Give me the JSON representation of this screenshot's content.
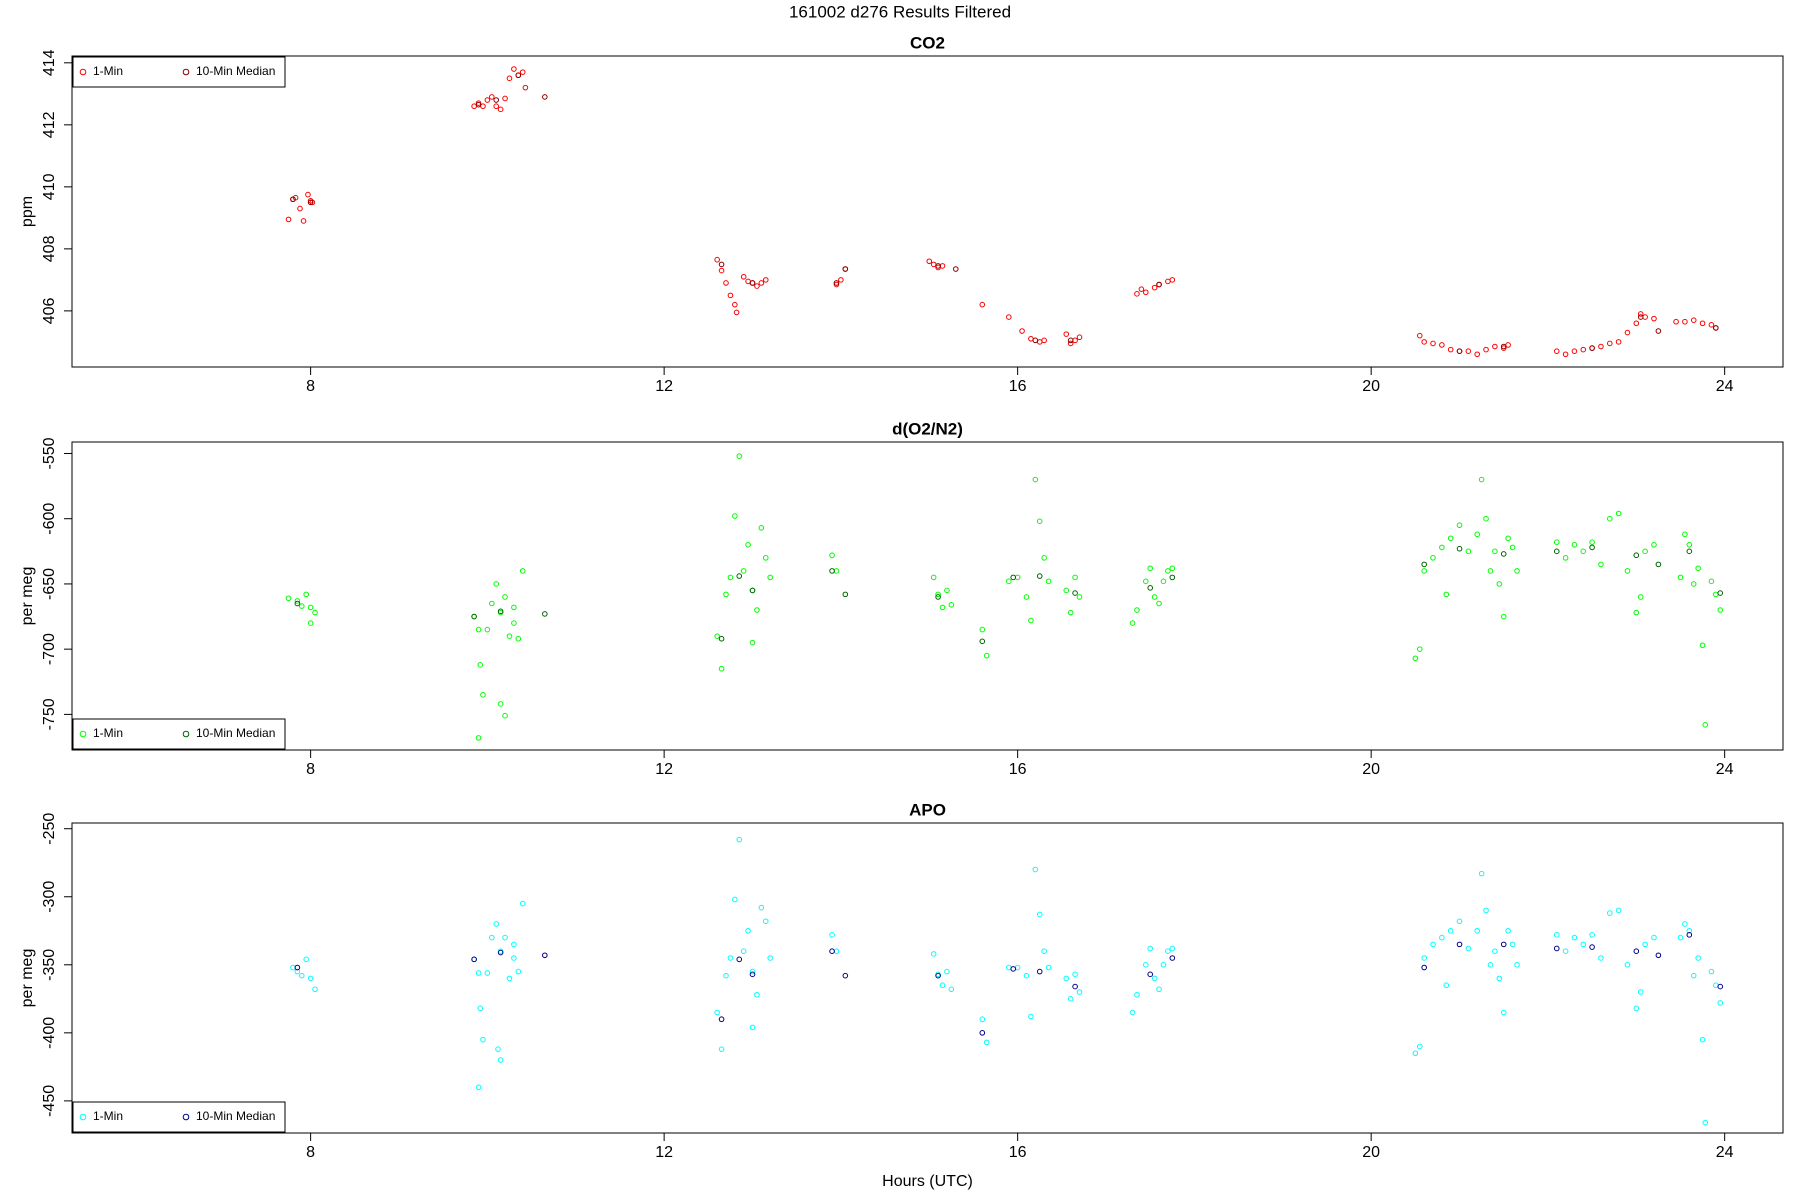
{
  "title": "161002   d276   Results Filtered",
  "chart_data": [
    {
      "type": "scatter",
      "title": "CO2",
      "y_label": "ppm",
      "legend": "topleft",
      "xlim": [
        5.3,
        24.66
      ],
      "xticks": [
        8,
        12,
        16,
        20,
        24
      ],
      "ylim": [
        404.19,
        414.22
      ],
      "yticks": [
        406,
        408,
        410,
        412,
        414
      ],
      "series": [
        {
          "name": "1-Min",
          "color": "#ff0000",
          "x": [
            7.75,
            7.8,
            7.83,
            7.88,
            7.92,
            7.97,
            8.0,
            8.02,
            9.85,
            9.9,
            9.95,
            10.0,
            10.05,
            10.1,
            10.15,
            10.2,
            10.25,
            10.3,
            10.35,
            10.4,
            10.43,
            12.6,
            12.65,
            12.7,
            12.75,
            12.8,
            12.82,
            12.9,
            12.95,
            13.0,
            13.05,
            13.1,
            13.15,
            13.95,
            14.0,
            14.05,
            15.0,
            15.05,
            15.1,
            15.15,
            15.6,
            15.9,
            16.05,
            16.15,
            16.25,
            16.3,
            16.55,
            16.6,
            16.65,
            16.7,
            17.35,
            17.4,
            17.45,
            17.55,
            17.6,
            17.7,
            17.75,
            20.55,
            20.6,
            20.7,
            20.8,
            20.9,
            21.0,
            21.1,
            21.2,
            21.3,
            21.4,
            21.5,
            21.55,
            22.1,
            22.2,
            22.3,
            22.4,
            22.5,
            22.6,
            22.7,
            22.8,
            22.9,
            23.0,
            23.05,
            23.1,
            23.2,
            23.45,
            23.55,
            23.65,
            23.75,
            23.85,
            23.9
          ],
          "values": [
            408.95,
            409.6,
            409.65,
            409.3,
            408.9,
            409.75,
            409.55,
            409.5,
            412.6,
            412.7,
            412.6,
            412.8,
            412.9,
            412.6,
            412.5,
            412.85,
            413.5,
            413.8,
            413.6,
            413.7,
            413.2,
            407.65,
            407.3,
            406.9,
            406.5,
            406.2,
            405.95,
            407.1,
            406.95,
            406.9,
            406.8,
            406.9,
            407.0,
            406.85,
            407.0,
            407.35,
            407.6,
            407.5,
            407.4,
            407.45,
            406.2,
            405.8,
            405.35,
            405.1,
            405.0,
            405.05,
            405.25,
            404.95,
            405.05,
            405.15,
            406.55,
            406.7,
            406.6,
            406.75,
            406.85,
            406.95,
            407.0,
            405.2,
            405.0,
            404.95,
            404.9,
            404.75,
            404.7,
            404.7,
            404.6,
            404.75,
            404.85,
            404.8,
            404.9,
            404.7,
            404.6,
            404.7,
            404.75,
            404.8,
            404.85,
            404.95,
            405.0,
            405.3,
            405.6,
            405.9,
            405.8,
            405.75,
            405.65,
            405.65,
            405.7,
            405.6,
            405.55,
            405.45
          ]
        },
        {
          "name": "10-Min Median",
          "color": "#8b0000",
          "x": [
            7.8,
            8.0,
            9.9,
            10.1,
            10.35,
            10.65,
            12.65,
            13.0,
            13.95,
            14.05,
            15.1,
            15.3,
            16.2,
            16.6,
            17.6,
            21.0,
            21.5,
            22.5,
            23.05,
            23.25,
            23.9
          ],
          "values": [
            409.6,
            409.5,
            412.65,
            412.8,
            413.6,
            412.9,
            407.5,
            406.9,
            406.9,
            407.35,
            407.45,
            407.35,
            405.05,
            405.05,
            406.85,
            404.7,
            404.85,
            404.8,
            405.8,
            405.35,
            405.45
          ]
        }
      ]
    },
    {
      "type": "scatter",
      "title": "d(O2/N2)",
      "y_label": "per meg",
      "legend": "bottomleft",
      "xlim": [
        5.3,
        24.66
      ],
      "xticks": [
        8,
        12,
        16,
        20,
        24
      ],
      "ylim": [
        -777.3,
        -541.2
      ],
      "yticks": [
        -550,
        -600,
        -650,
        -700,
        -750
      ],
      "series": [
        {
          "name": "1-Min",
          "color": "#00ff00",
          "x": [
            7.75,
            7.85,
            7.9,
            7.95,
            8.0,
            8.05,
            8.0,
            9.85,
            9.9,
            9.92,
            9.95,
            10.0,
            10.05,
            10.1,
            10.15,
            10.2,
            10.15,
            10.2,
            9.9,
            10.25,
            10.3,
            10.35,
            10.4,
            10.3,
            12.6,
            12.65,
            12.7,
            12.75,
            12.8,
            12.85,
            12.9,
            12.95,
            13.0,
            13.05,
            13.0,
            13.1,
            13.15,
            13.2,
            13.9,
            13.95,
            15.05,
            15.1,
            15.15,
            15.2,
            15.25,
            15.6,
            15.65,
            15.9,
            16.0,
            16.1,
            16.15,
            16.2,
            16.25,
            16.3,
            16.35,
            16.55,
            16.6,
            16.65,
            16.7,
            17.3,
            17.35,
            17.45,
            17.5,
            17.55,
            17.6,
            17.65,
            17.7,
            17.75,
            20.5,
            20.55,
            20.6,
            20.7,
            20.8,
            20.85,
            20.9,
            21.0,
            21.1,
            21.2,
            21.25,
            21.3,
            21.35,
            21.4,
            21.45,
            21.5,
            21.55,
            21.6,
            21.65,
            22.1,
            22.2,
            22.3,
            22.4,
            22.5,
            22.6,
            22.7,
            22.8,
            22.9,
            23.0,
            23.05,
            23.1,
            23.2,
            23.5,
            23.55,
            23.6,
            23.65,
            23.7,
            23.75,
            23.78,
            23.85,
            23.9,
            23.95
          ],
          "values": [
            -661,
            -663,
            -667,
            -658,
            -668,
            -672,
            -680,
            -675,
            -685,
            -712,
            -735,
            -685,
            -665,
            -650,
            -672,
            -660,
            -742,
            -751,
            -768,
            -690,
            -680,
            -692,
            -640,
            -668,
            -690,
            -715,
            -658,
            -645,
            -598,
            -552,
            -640,
            -620,
            -655,
            -670,
            -695,
            -607,
            -630,
            -645,
            -628,
            -640,
            -645,
            -658,
            -668,
            -655,
            -666,
            -685,
            -705,
            -648,
            -645,
            -660,
            -678,
            -570,
            -602,
            -630,
            -648,
            -655,
            -672,
            -645,
            -660,
            -680,
            -670,
            -648,
            -638,
            -660,
            -665,
            -648,
            -640,
            -638,
            -707,
            -700,
            -640,
            -630,
            -622,
            -658,
            -615,
            -605,
            -625,
            -612,
            -570,
            -600,
            -640,
            -625,
            -650,
            -675,
            -615,
            -622,
            -640,
            -618,
            -630,
            -620,
            -625,
            -618,
            -635,
            -600,
            -596,
            -640,
            -672,
            -660,
            -625,
            -620,
            -645,
            -612,
            -620,
            -650,
            -638,
            -697,
            -758,
            -648,
            -658,
            -670
          ]
        },
        {
          "name": "10-Min Median",
          "color": "#006400",
          "x": [
            7.85,
            9.85,
            10.15,
            10.65,
            12.65,
            12.85,
            13.0,
            13.9,
            14.05,
            15.1,
            15.6,
            15.95,
            16.25,
            16.65,
            17.5,
            17.75,
            20.6,
            21.0,
            21.5,
            22.1,
            22.5,
            23.0,
            23.25,
            23.6,
            23.95
          ],
          "values": [
            -665,
            -675,
            -671,
            -673,
            -692,
            -644,
            -655,
            -640,
            -658,
            -660,
            -694,
            -645,
            -644,
            -657,
            -653,
            -645,
            -635,
            -623,
            -627,
            -625,
            -622,
            -628,
            -635,
            -625,
            -657
          ]
        }
      ]
    },
    {
      "type": "scatter",
      "title": "APO",
      "y_label": "per meg",
      "x_label": "Hours (UTC)",
      "legend": "bottomleft",
      "xlim": [
        5.3,
        24.66
      ],
      "xticks": [
        8,
        12,
        16,
        20,
        24
      ],
      "ylim": [
        -473.6,
        -245.8
      ],
      "yticks": [
        -250,
        -300,
        -350,
        -400,
        -450
      ],
      "series": [
        {
          "name": "1-Min",
          "color": "#00ffff",
          "x": [
            7.8,
            7.85,
            7.9,
            7.95,
            8.0,
            8.05,
            9.85,
            9.9,
            9.92,
            9.95,
            10.0,
            10.05,
            10.1,
            10.15,
            10.2,
            10.12,
            10.15,
            9.9,
            10.25,
            10.3,
            10.35,
            10.4,
            10.3,
            12.6,
            12.65,
            12.7,
            12.75,
            12.8,
            12.85,
            12.9,
            12.95,
            13.0,
            13.05,
            13.0,
            13.1,
            13.15,
            13.2,
            13.9,
            13.95,
            15.05,
            15.1,
            15.15,
            15.2,
            15.25,
            15.6,
            15.65,
            15.9,
            16.0,
            16.1,
            16.15,
            16.2,
            16.25,
            16.3,
            16.35,
            16.55,
            16.6,
            16.65,
            16.7,
            17.3,
            17.35,
            17.45,
            17.5,
            17.55,
            17.6,
            17.65,
            17.7,
            17.75,
            20.5,
            20.55,
            20.6,
            20.7,
            20.8,
            20.85,
            20.9,
            21.0,
            21.1,
            21.2,
            21.25,
            21.3,
            21.35,
            21.4,
            21.45,
            21.5,
            21.55,
            21.6,
            21.65,
            22.1,
            22.2,
            22.3,
            22.4,
            22.5,
            22.6,
            22.7,
            22.8,
            22.9,
            23.0,
            23.05,
            23.1,
            23.2,
            23.5,
            23.55,
            23.6,
            23.65,
            23.7,
            23.75,
            23.78,
            23.85,
            23.9,
            23.95
          ],
          "values": [
            -352,
            -355,
            -358,
            -346,
            -360,
            -368,
            -346,
            -356,
            -382,
            -405,
            -356,
            -330,
            -320,
            -340,
            -330,
            -412,
            -420,
            -440,
            -360,
            -345,
            -355,
            -305,
            -335,
            -385,
            -412,
            -358,
            -345,
            -302,
            -258,
            -340,
            -325,
            -355,
            -372,
            -396,
            -308,
            -318,
            -345,
            -328,
            -340,
            -342,
            -357,
            -365,
            -355,
            -368,
            -390,
            -407,
            -352,
            -352,
            -358,
            -388,
            -280,
            -313,
            -340,
            -352,
            -360,
            -375,
            -357,
            -370,
            -385,
            -372,
            -350,
            -338,
            -360,
            -368,
            -350,
            -340,
            -338,
            -415,
            -410,
            -345,
            -335,
            -330,
            -365,
            -325,
            -318,
            -338,
            -325,
            -283,
            -310,
            -350,
            -340,
            -360,
            -385,
            -325,
            -335,
            -350,
            -328,
            -340,
            -330,
            -335,
            -328,
            -345,
            -312,
            -310,
            -350,
            -382,
            -370,
            -335,
            -330,
            -330,
            -320,
            -325,
            -358,
            -345,
            -405,
            -466,
            -355,
            -365,
            -378
          ]
        },
        {
          "name": "10-Min Median",
          "color": "#00008b",
          "x": [
            7.85,
            9.85,
            10.15,
            10.65,
            12.65,
            12.85,
            13.0,
            13.9,
            14.05,
            15.1,
            15.6,
            15.95,
            16.25,
            16.65,
            17.5,
            17.75,
            20.6,
            21.0,
            21.5,
            22.1,
            22.5,
            23.0,
            23.25,
            23.6,
            23.95
          ],
          "values": [
            -352,
            -346,
            -341,
            -343,
            -390,
            -346,
            -357,
            -340,
            -358,
            -358,
            -400,
            -353,
            -355,
            -366,
            -357,
            -345,
            -352,
            -335,
            -335,
            -338,
            -337,
            -340,
            -343,
            -328,
            -366
          ]
        }
      ]
    }
  ]
}
